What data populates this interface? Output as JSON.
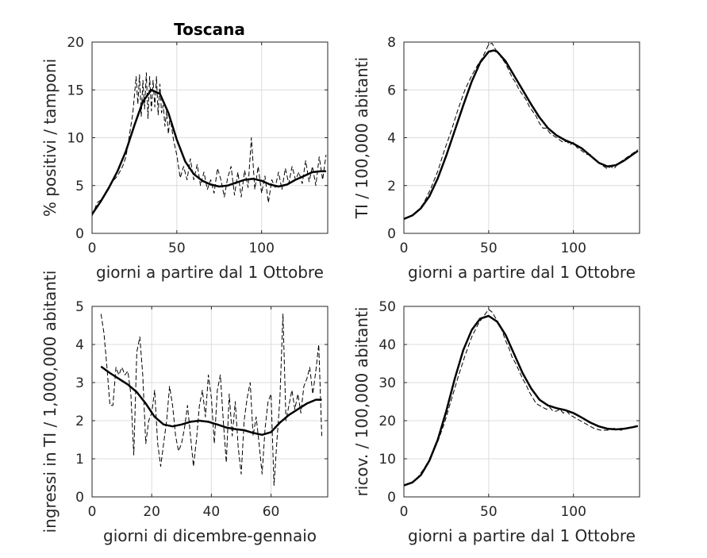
{
  "figure_title": "Toscana",
  "chart_data": [
    {
      "type": "line",
      "title": "Toscana",
      "xlabel": "giorni a partire dal 1 Ottobre",
      "ylabel": "% positivi / tamponi",
      "xlim": [
        0,
        139
      ],
      "ylim": [
        0,
        20
      ],
      "xticks": [
        0,
        50,
        100
      ],
      "yticks": [
        0,
        5,
        10,
        15,
        20
      ],
      "grid": true,
      "series": [
        {
          "style": "dashed-raw",
          "x": [
            0,
            3,
            6,
            9,
            12,
            15,
            18,
            20,
            22,
            24,
            26,
            27,
            28,
            29,
            30,
            31,
            32,
            33,
            34,
            35,
            36,
            37,
            38,
            39,
            40,
            41,
            42,
            43,
            44,
            45,
            46,
            48,
            50,
            52,
            54,
            56,
            58,
            60,
            62,
            64,
            66,
            68,
            70,
            72,
            74,
            76,
            78,
            80,
            82,
            84,
            86,
            88,
            90,
            92,
            94,
            96,
            98,
            100,
            102,
            104,
            106,
            108,
            110,
            112,
            114,
            116,
            118,
            120,
            122,
            124,
            126,
            128,
            130,
            132,
            134,
            136,
            138
          ],
          "y": [
            1.8,
            3.2,
            3.6,
            4.4,
            5.4,
            6.0,
            7.0,
            8.0,
            10.2,
            12.5,
            16.4,
            13.5,
            16.6,
            12.2,
            16.0,
            13.0,
            16.8,
            12.0,
            16.4,
            12.8,
            16.0,
            13.2,
            16.4,
            12.4,
            15.6,
            12.6,
            13.4,
            11.2,
            12.8,
            10.4,
            12.2,
            9.8,
            8.2,
            5.8,
            7.0,
            5.6,
            7.8,
            5.6,
            7.2,
            5.0,
            6.4,
            4.6,
            5.6,
            4.2,
            6.8,
            5.6,
            3.8,
            5.8,
            7.0,
            4.0,
            6.4,
            3.8,
            6.6,
            4.8,
            10.0,
            4.6,
            7.0,
            4.2,
            6.0,
            3.2,
            5.6,
            4.8,
            6.4,
            4.6,
            6.8,
            5.2,
            7.0,
            5.6,
            6.4,
            5.2,
            7.6,
            5.4,
            7.0,
            5.0,
            8.0,
            5.6,
            8.2
          ]
        },
        {
          "style": "solid-smooth",
          "x": [
            0,
            5,
            10,
            15,
            20,
            25,
            30,
            35,
            40,
            45,
            50,
            55,
            60,
            65,
            70,
            75,
            80,
            85,
            90,
            95,
            100,
            105,
            110,
            115,
            120,
            125,
            130,
            135,
            138
          ],
          "y": [
            2.0,
            3.3,
            4.8,
            6.5,
            8.6,
            11.3,
            13.8,
            15.0,
            14.6,
            12.6,
            9.8,
            7.5,
            6.2,
            5.5,
            5.1,
            4.9,
            5.0,
            5.3,
            5.6,
            5.7,
            5.5,
            5.1,
            4.9,
            5.1,
            5.6,
            6.0,
            6.4,
            6.5,
            6.5
          ]
        }
      ]
    },
    {
      "type": "line",
      "title": "",
      "xlabel": "giorni a partire dal 1 Ottobre",
      "ylabel": "TI / 100,000 abitanti",
      "xlim": [
        0,
        139
      ],
      "ylim": [
        0,
        8
      ],
      "xticks": [
        0,
        50,
        100
      ],
      "yticks": [
        0,
        2,
        4,
        6,
        8
      ],
      "grid": true,
      "series": [
        {
          "style": "dashed-raw",
          "x": [
            0,
            4,
            8,
            12,
            16,
            20,
            24,
            28,
            32,
            36,
            40,
            44,
            46,
            48,
            50,
            52,
            54,
            56,
            58,
            60,
            62,
            64,
            66,
            68,
            70,
            72,
            74,
            76,
            78,
            80,
            82,
            84,
            86,
            88,
            90,
            92,
            94,
            96,
            98,
            100,
            102,
            104,
            106,
            108,
            110,
            112,
            114,
            116,
            118,
            120,
            122,
            124,
            126,
            128,
            130,
            132,
            134,
            136,
            138
          ],
          "y": [
            0.6,
            0.7,
            0.9,
            1.3,
            1.9,
            2.6,
            3.5,
            4.3,
            5.2,
            6.0,
            6.6,
            7.1,
            7.3,
            7.6,
            7.9,
            7.95,
            7.7,
            7.5,
            7.3,
            7.1,
            6.8,
            6.5,
            6.3,
            6.0,
            5.8,
            5.6,
            5.3,
            5.1,
            4.9,
            4.6,
            4.4,
            4.4,
            4.2,
            4.1,
            4.0,
            3.9,
            3.8,
            3.85,
            3.7,
            3.8,
            3.6,
            3.5,
            3.4,
            3.3,
            3.3,
            3.1,
            3.0,
            2.9,
            2.8,
            2.7,
            2.8,
            2.7,
            2.9,
            3.0,
            3.1,
            3.2,
            3.3,
            3.4,
            3.5
          ]
        },
        {
          "style": "solid-smooth",
          "x": [
            0,
            5,
            10,
            15,
            20,
            25,
            30,
            35,
            40,
            45,
            50,
            53,
            55,
            60,
            65,
            70,
            75,
            80,
            85,
            90,
            95,
            100,
            105,
            110,
            115,
            120,
            125,
            130,
            135,
            138
          ],
          "y": [
            0.6,
            0.75,
            1.05,
            1.55,
            2.3,
            3.25,
            4.3,
            5.35,
            6.35,
            7.15,
            7.6,
            7.65,
            7.6,
            7.2,
            6.6,
            6.0,
            5.4,
            4.85,
            4.4,
            4.1,
            3.9,
            3.75,
            3.55,
            3.25,
            2.95,
            2.8,
            2.85,
            3.05,
            3.3,
            3.45
          ]
        }
      ]
    },
    {
      "type": "line",
      "title": "",
      "xlabel": "giorni di dicembre-gennaio",
      "ylabel": "ingressi in TI / 1,000,000 abitanti",
      "xlim": [
        0,
        79
      ],
      "ylim": [
        0,
        5
      ],
      "xticks": [
        0,
        20,
        40,
        60
      ],
      "yticks": [
        0,
        1,
        2,
        3,
        4,
        5
      ],
      "grid": true,
      "series": [
        {
          "style": "dashed-raw",
          "x": [
            3,
            4,
            5,
            6,
            7,
            8,
            9,
            10,
            11,
            12,
            13,
            14,
            15,
            16,
            17,
            18,
            19,
            20,
            21,
            22,
            23,
            24,
            25,
            26,
            27,
            28,
            29,
            30,
            31,
            32,
            33,
            34,
            35,
            36,
            37,
            38,
            39,
            40,
            41,
            42,
            43,
            44,
            45,
            46,
            47,
            48,
            49,
            50,
            51,
            52,
            53,
            54,
            55,
            56,
            57,
            58,
            59,
            60,
            61,
            62,
            63,
            64,
            65,
            66,
            67,
            68,
            69,
            70,
            71,
            72,
            73,
            74,
            75,
            76,
            77
          ],
          "y": [
            4.8,
            4.3,
            3.4,
            2.4,
            2.4,
            3.4,
            3.2,
            3.4,
            3.2,
            3.3,
            2.7,
            1.1,
            3.8,
            4.2,
            3.2,
            1.4,
            2.0,
            2.2,
            2.8,
            1.4,
            0.8,
            1.4,
            2.0,
            2.9,
            2.4,
            1.6,
            1.2,
            1.4,
            1.8,
            2.4,
            1.6,
            0.8,
            1.5,
            2.4,
            2.8,
            2.1,
            3.2,
            2.6,
            1.4,
            2.8,
            3.2,
            2.0,
            0.9,
            2.7,
            1.6,
            2.5,
            1.3,
            0.6,
            2.0,
            2.6,
            3.0,
            1.6,
            2.1,
            1.4,
            0.6,
            1.8,
            2.5,
            2.7,
            0.3,
            1.5,
            2.6,
            4.8,
            2.0,
            2.4,
            2.8,
            2.3,
            2.7,
            2.2,
            2.9,
            3.1,
            3.4,
            2.7,
            3.3,
            4.0,
            1.6
          ]
        },
        {
          "style": "solid-smooth",
          "x": [
            3,
            6,
            9,
            12,
            15,
            18,
            21,
            24,
            27,
            30,
            33,
            36,
            39,
            42,
            45,
            48,
            51,
            54,
            57,
            60,
            63,
            66,
            69,
            72,
            75,
            77
          ],
          "y": [
            3.42,
            3.25,
            3.1,
            2.95,
            2.75,
            2.45,
            2.1,
            1.9,
            1.85,
            1.9,
            1.97,
            2.0,
            1.97,
            1.9,
            1.82,
            1.78,
            1.75,
            1.68,
            1.63,
            1.7,
            1.95,
            2.15,
            2.3,
            2.45,
            2.55,
            2.55
          ]
        }
      ]
    },
    {
      "type": "line",
      "title": "",
      "xlabel": "giorni a partire dal 1 Ottobre",
      "ylabel": "ricov. / 100,000 abitanti",
      "xlim": [
        0,
        139
      ],
      "ylim": [
        0,
        50
      ],
      "xticks": [
        0,
        50,
        100
      ],
      "yticks": [
        0,
        10,
        20,
        30,
        40,
        50
      ],
      "grid": true,
      "series": [
        {
          "style": "dashed-raw",
          "x": [
            0,
            4,
            8,
            12,
            16,
            20,
            24,
            28,
            32,
            36,
            40,
            44,
            48,
            50,
            52,
            54,
            56,
            58,
            60,
            62,
            64,
            66,
            68,
            70,
            72,
            74,
            76,
            78,
            80,
            82,
            84,
            86,
            88,
            90,
            92,
            94,
            96,
            98,
            100,
            104,
            108,
            112,
            116,
            120,
            124,
            128,
            132,
            136,
            138
          ],
          "y": [
            3.0,
            3.5,
            5.0,
            7.5,
            10.5,
            14.5,
            19.5,
            25.5,
            31.5,
            37.0,
            42.0,
            45.5,
            48.0,
            49.2,
            48.5,
            47.0,
            45.5,
            43.5,
            41.0,
            39.0,
            36.5,
            35.0,
            33.0,
            31.0,
            29.5,
            27.5,
            26.0,
            24.5,
            24.0,
            23.5,
            23.0,
            23.5,
            22.5,
            22.5,
            23.0,
            22.0,
            22.5,
            21.5,
            21.0,
            20.0,
            19.0,
            18.0,
            17.5,
            17.5,
            18.0,
            17.5,
            18.0,
            18.5,
            18.5
          ]
        },
        {
          "style": "solid-smooth",
          "x": [
            0,
            5,
            10,
            15,
            20,
            25,
            30,
            35,
            40,
            45,
            50,
            55,
            60,
            65,
            70,
            75,
            80,
            85,
            90,
            95,
            100,
            105,
            110,
            115,
            120,
            125,
            130,
            135,
            138
          ],
          "y": [
            3.0,
            3.8,
            5.7,
            9.5,
            15.0,
            22.5,
            31.0,
            38.5,
            43.8,
            46.8,
            47.5,
            46.0,
            42.5,
            37.5,
            32.5,
            28.5,
            25.5,
            24.0,
            23.3,
            22.8,
            22.0,
            20.8,
            19.5,
            18.5,
            17.9,
            17.7,
            17.9,
            18.3,
            18.6
          ]
        }
      ]
    }
  ]
}
